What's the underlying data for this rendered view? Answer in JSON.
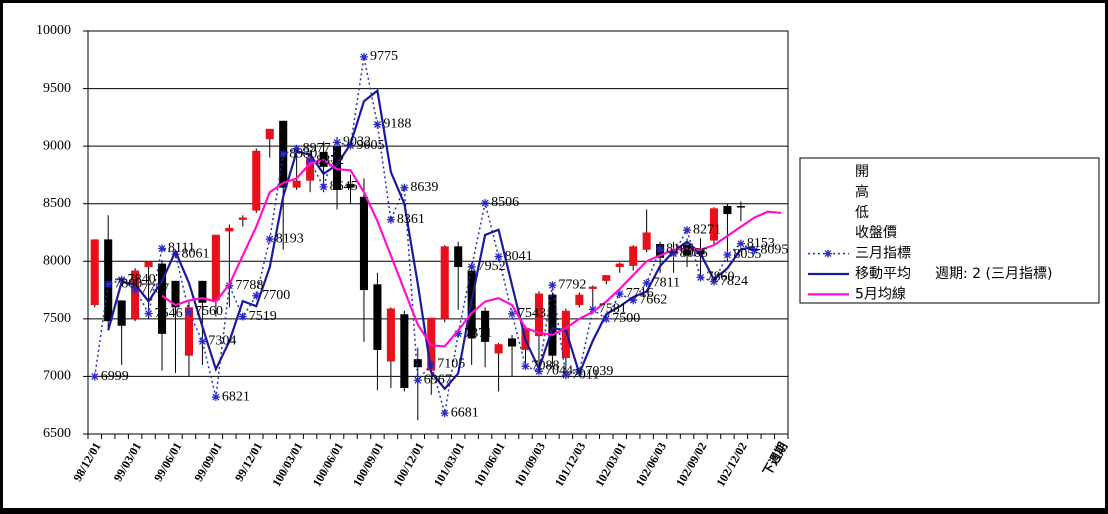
{
  "chart_data": {
    "type": "candlestick",
    "categories": [
      "98/12/01",
      null,
      null,
      "99/03/01",
      null,
      null,
      "99/06/01",
      null,
      null,
      "99/09/01",
      null,
      null,
      "99/12/01",
      null,
      null,
      "100/03/01",
      null,
      null,
      "100/06/01",
      null,
      null,
      "100/09/01",
      null,
      null,
      "100/12/01",
      null,
      null,
      "101/03/01",
      null,
      null,
      "101/06/01",
      null,
      null,
      "101/09/03",
      null,
      null,
      "101/12/03",
      null,
      null,
      "102/03/01",
      null,
      null,
      "102/06/03",
      null,
      null,
      "102/09/02",
      null,
      null,
      "102/12/02",
      null,
      null,
      "下週期"
    ],
    "ylim": [
      6500,
      10000
    ],
    "yticks": [
      6500,
      7000,
      7500,
      8000,
      8500,
      9000,
      9500,
      10000
    ],
    "grid": true,
    "up_color": "#e8101a",
    "down_color": "#000000",
    "legend": "right",
    "series": [
      {
        "name": "開",
        "role": "open",
        "values": [
          7620,
          8190,
          7660,
          7500,
          7950,
          7980,
          7830,
          7180,
          7830,
          7660,
          8260,
          8360,
          8440,
          9060,
          9220,
          8640,
          8700,
          8950,
          9000,
          8670,
          8560,
          7800,
          7130,
          7540,
          7150,
          7050,
          7500,
          8130,
          7920,
          7570,
          7200,
          7330,
          7230,
          7350,
          7710,
          7160,
          7620,
          7760,
          7830,
          7950,
          7960,
          8100,
          8150,
          8100,
          8140,
          8110,
          8180,
          8480,
          8480,
          null,
          null,
          null
        ]
      },
      {
        "name": "高",
        "role": "high",
        "values": [
          8190,
          8400,
          7660,
          7940,
          8000,
          8010,
          7830,
          7650,
          7830,
          8230,
          8320,
          8400,
          8980,
          9150,
          9220,
          8930,
          8960,
          9040,
          9080,
          8750,
          8720,
          7900,
          7600,
          7570,
          7250,
          7510,
          8140,
          8170,
          7970,
          7600,
          7290,
          7360,
          7440,
          7740,
          7730,
          7590,
          7730,
          7790,
          7880,
          7990,
          8140,
          8450,
          8170,
          8170,
          8200,
          8200,
          8470,
          8500,
          8520,
          null,
          null,
          null
        ]
      },
      {
        "name": "低",
        "role": "low",
        "values": [
          7600,
          7420,
          7100,
          7480,
          7500,
          7050,
          7030,
          7000,
          7100,
          7520,
          7600,
          8300,
          8420,
          8900,
          8100,
          8620,
          8600,
          8600,
          8450,
          8500,
          7300,
          6880,
          6900,
          6870,
          6620,
          6840,
          7470,
          7580,
          7100,
          7080,
          6870,
          7000,
          7100,
          7040,
          7080,
          7000,
          7600,
          7600,
          7800,
          7900,
          7920,
          8080,
          7900,
          7900,
          7950,
          7880,
          8150,
          8000,
          8350,
          null,
          null,
          null
        ]
      },
      {
        "name": "收盤價",
        "role": "close",
        "values": [
          8190,
          7480,
          7440,
          7920,
          8000,
          7370,
          7600,
          7600,
          7640,
          8230,
          8290,
          8380,
          8960,
          9150,
          8640,
          8700,
          8900,
          8820,
          8620,
          8640,
          7750,
          7230,
          7590,
          6900,
          7080,
          7510,
          8130,
          7950,
          7330,
          7300,
          7280,
          7260,
          7420,
          7720,
          7180,
          7570,
          7710,
          7780,
          7880,
          7980,
          8130,
          8250,
          8030,
          8060,
          8050,
          8060,
          8460,
          8410,
          8470,
          null,
          null,
          null
        ]
      },
      {
        "name": "三月指標",
        "role": "line",
        "color": "#2a2ac8",
        "dash": "dotted",
        "marker": "star",
        "labels": true,
        "values": [
          6999,
          7800,
          7840,
          7757,
          7546,
          8111,
          8061,
          7560,
          7304,
          6821,
          7788,
          7519,
          7700,
          8193,
          8930,
          8977,
          8872,
          8645,
          9032,
          9005,
          9775,
          9188,
          8361,
          8639,
          6967,
          7105,
          6681,
          7371,
          7952,
          8506,
          8041,
          7543,
          7088,
          7044,
          7792,
          7011,
          7039,
          7581,
          7500,
          7716,
          7662,
          7811,
          8106,
          8066,
          8271,
          7860,
          7824,
          8055,
          8153,
          8095,
          null,
          null
        ]
      },
      {
        "name": "移動平均",
        "role": "line",
        "color": "#1a1aa0",
        "dash": "solid",
        "values": [
          null,
          7400,
          7820,
          7799,
          7652,
          7829,
          8086,
          7811,
          7432,
          7063,
          7305,
          7654,
          7610,
          7947,
          8562,
          8954,
          8925,
          8759,
          8839,
          9019,
          9390,
          9482,
          8775,
          8500,
          7803,
          7036,
          6893,
          7026,
          7662,
          8229,
          8274,
          7792,
          7316,
          7066,
          7418,
          7402,
          7025,
          7310,
          7541,
          7608,
          7689,
          7737,
          7959,
          8086,
          8169,
          8066,
          7842,
          7940,
          8104,
          8124,
          null,
          null
        ]
      },
      {
        "name": "5月均線",
        "role": "line",
        "color": "#ff10d0",
        "dash": "solid",
        "values": [
          null,
          null,
          null,
          null,
          null,
          7700,
          7620,
          7660,
          7680,
          7650,
          7800,
          8050,
          8300,
          8600,
          8680,
          8720,
          8850,
          8880,
          8800,
          8790,
          8600,
          8350,
          8050,
          7750,
          7450,
          7270,
          7260,
          7400,
          7550,
          7650,
          7680,
          7620,
          7420,
          7380,
          7360,
          7420,
          7500,
          7560,
          7650,
          7760,
          7880,
          8000,
          8050,
          8100,
          8110,
          8100,
          8140,
          8220,
          8300,
          8380,
          8430,
          8420
        ]
      }
    ],
    "annotations": [
      "週期: 2 (三月指標)"
    ]
  }
}
